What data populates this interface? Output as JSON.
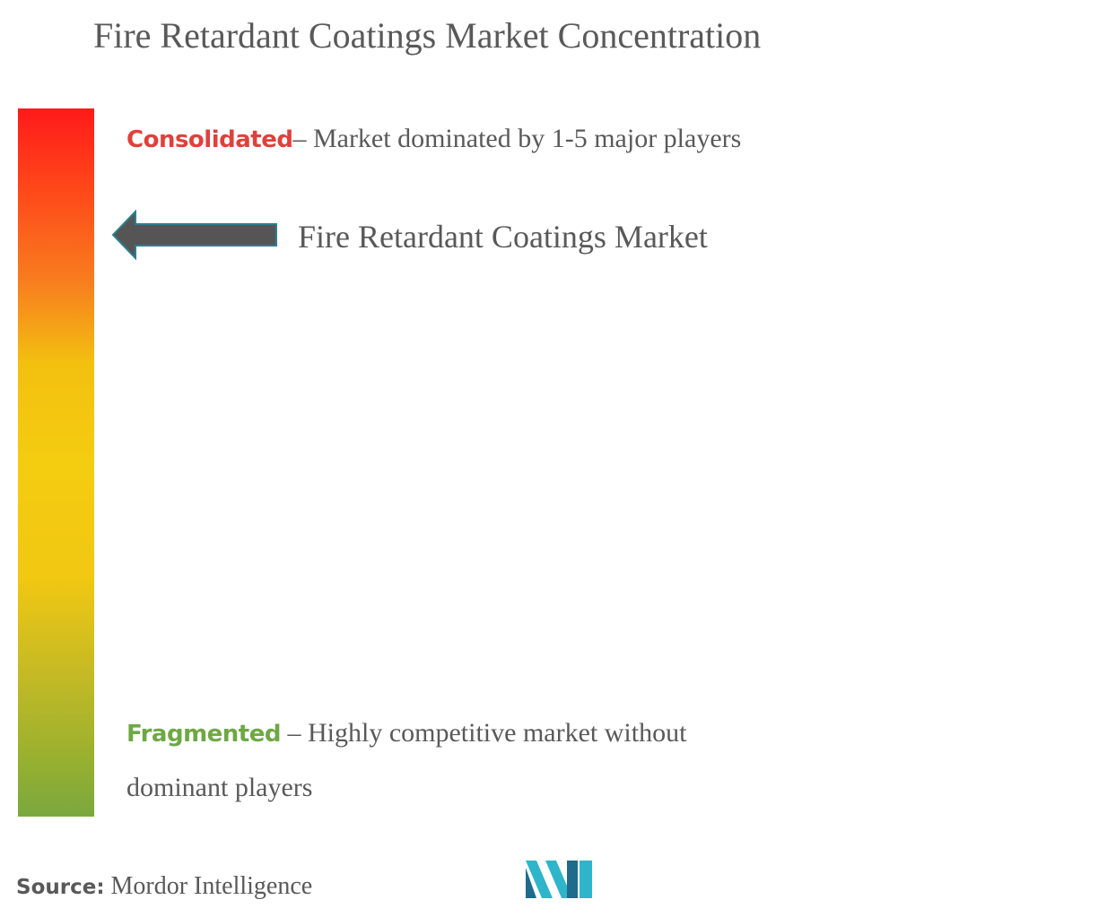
{
  "title": "Fire Retardant Coatings Market Concentration",
  "scale": {
    "top_color": "#ff1a1a",
    "middle_color": "#f4cc10",
    "bottom_color": "#7aa83e"
  },
  "consolidated": {
    "keyword": "Consolidated",
    "text": "– Market dominated by 1-5 major players",
    "color": "#e0403c"
  },
  "fragmented": {
    "keyword": "Fragmented",
    "text": " – Highly competitive market without dominant players",
    "color": "#6ea843"
  },
  "marker": {
    "label": "Fire Retardant Coatings Market",
    "icon": "left-arrow-icon",
    "color": "#555555"
  },
  "source": {
    "label": "Source:",
    "text": " Mordor Intelligence"
  },
  "logo": {
    "icon": "mordor-intelligence-logo",
    "color": "#2fb5c9"
  }
}
